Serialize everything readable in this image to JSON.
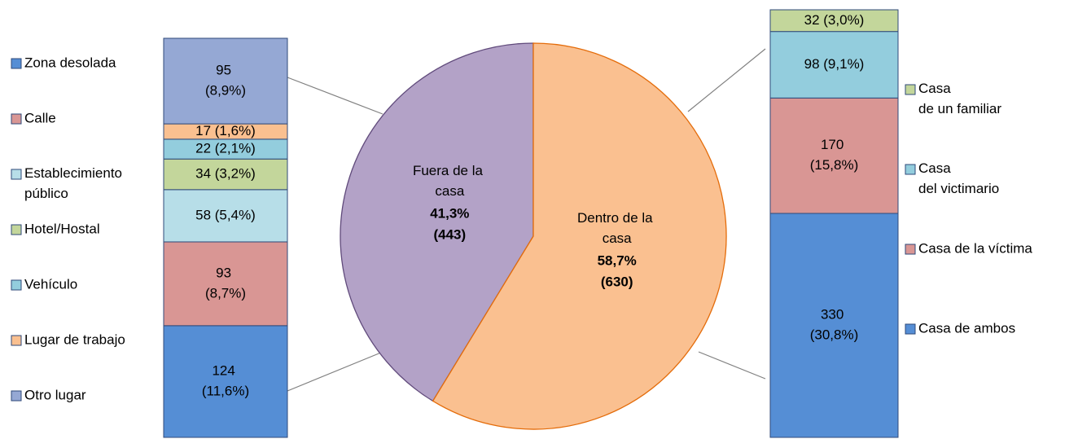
{
  "chart_data": [
    {
      "type": "pie",
      "categories": [
        "Fuera de la casa",
        "Dentro de la casa"
      ],
      "values": [
        443,
        630
      ],
      "value_labels": [
        "(443)",
        "(630)"
      ],
      "percent_labels": [
        "41,3%",
        "58,7%"
      ],
      "colors": [
        "#b3a2c7",
        "#fac090"
      ],
      "edge_colors": [
        "#604a7b",
        "#e46c0a"
      ]
    },
    {
      "type": "bar",
      "stacked": true,
      "legend": "left",
      "series": [
        {
          "name": "Zona desolada",
          "color": "#558ed5",
          "values": [
            124
          ],
          "value_labels": [
            "124 (11,6%)"
          ]
        },
        {
          "name": "Calle",
          "color": "#d99694",
          "values": [
            93
          ],
          "value_labels": [
            "93 (8,7%)"
          ]
        },
        {
          "name": "Establecimiento público",
          "color": "#b7dee8",
          "values": [
            58
          ],
          "value_labels": [
            "58 (5,4%)"
          ]
        },
        {
          "name": "Hotel/Hostal",
          "color": "#c3d69b",
          "values": [
            34
          ],
          "value_labels": [
            "34 (3,2%)"
          ]
        },
        {
          "name": "Vehículo",
          "color": "#93cddd",
          "values": [
            22
          ],
          "value_labels": [
            "22 (2,1%)"
          ]
        },
        {
          "name": "Lugar de trabajo",
          "color": "#fac090",
          "values": [
            17
          ],
          "value_labels": [
            "17 (1,6%)"
          ]
        },
        {
          "name": "Otro lugar",
          "color": "#95a8d4",
          "values": [
            95
          ],
          "value_labels": [
            "95 (8,9%)"
          ]
        }
      ]
    },
    {
      "type": "bar",
      "stacked": true,
      "legend": "right",
      "legend_reversed": true,
      "series": [
        {
          "name": "Casa de ambos",
          "color": "#558ed5",
          "values": [
            330
          ],
          "value_labels": [
            "330 (30,8%)"
          ]
        },
        {
          "name": "Casa de la víctima",
          "color": "#d99694",
          "values": [
            170
          ],
          "value_labels": [
            "170 (15,8%)"
          ]
        },
        {
          "name": "Casa del victimario",
          "color": "#93cddd",
          "values": [
            98
          ],
          "value_labels": [
            "98 (9,1%)"
          ]
        },
        {
          "name": "Casa de un familiar",
          "color": "#c3d69b",
          "values": [
            32
          ],
          "value_labels": [
            "32 (3,0%)"
          ]
        }
      ]
    }
  ]
}
